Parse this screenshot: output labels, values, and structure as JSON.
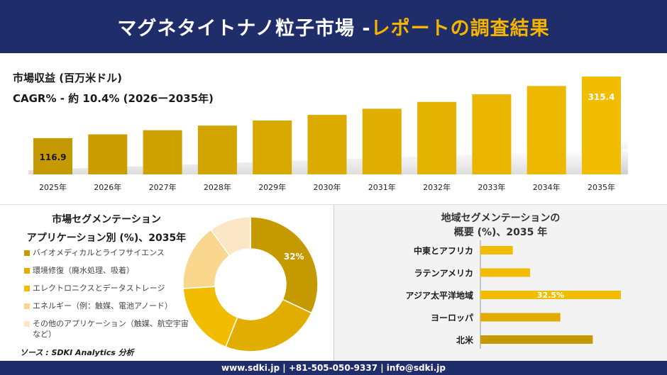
{
  "header": {
    "title_main": "マグネタイトナノ粒子市場 -",
    "title_accent": "レポートの調査結果"
  },
  "metrics": {
    "revenue_label": "市場収益 (百万米ドル)",
    "cagr_label": "CAGR% - 約 10.4% (2026ー2035年)"
  },
  "segment_title_1": "市場セグメンテーション",
  "segment_title_2": "アプリケーション別 (%)、2035年",
  "region_title_1": "地域セグメンテーションの",
  "region_title_2": "概要 (%)、2035 年",
  "source": "ソース : SDKI Analytics 分析",
  "footer": {
    "text": "www.sdki.jp | +81-505-050-9337 | info@sdki.jp"
  },
  "colors": {
    "header_bg": "#1f2d6b",
    "accent": "#f4b400",
    "bar_dark": "#c49a00",
    "bar_light": "#f2bc00"
  },
  "chart_data": [
    {
      "type": "bar",
      "categories": [
        "2025年",
        "2026年",
        "2027年",
        "2028年",
        "2029年",
        "2030年",
        "2031年",
        "2032年",
        "2033年",
        "2034年",
        "2035年"
      ],
      "values": [
        116.9,
        129.1,
        142.5,
        157.3,
        173.7,
        191.8,
        211.7,
        233.7,
        258.0,
        284.9,
        315.4
      ],
      "data_labels": {
        "0": "116.9",
        "10": "315.4"
      }
    },
    {
      "type": "pie",
      "donut": true,
      "categories": [
        "バイオメディカルとライフサイエンス",
        "環境修復（廃水処理、吸着）",
        "エレクトロニクスとデータストレージ",
        "エネルギー（例：触媒、電池アノード）",
        "その他のアプリケーション（触媒、航空宇宙など）"
      ],
      "values": [
        32,
        24,
        18,
        16,
        10
      ],
      "colors": [
        "#c49a00",
        "#e1ad00",
        "#f2bc00",
        "#f9d78c",
        "#fbe7c6"
      ],
      "data_labels": {
        "0": "32%"
      }
    },
    {
      "type": "bar",
      "orientation": "horizontal",
      "categories": [
        "中東とアフリカ",
        "ラテンアメリカ",
        "アジア太平洋地域",
        "ヨーロッパ",
        "北米"
      ],
      "values": [
        7.5,
        11.5,
        32.5,
        18.5,
        26.0
      ],
      "colors": [
        "#f2bc00",
        "#f2bc00",
        "#f2bc00",
        "#e1ad00",
        "#c49a00"
      ],
      "data_labels": {
        "2": "32.5%"
      }
    }
  ]
}
